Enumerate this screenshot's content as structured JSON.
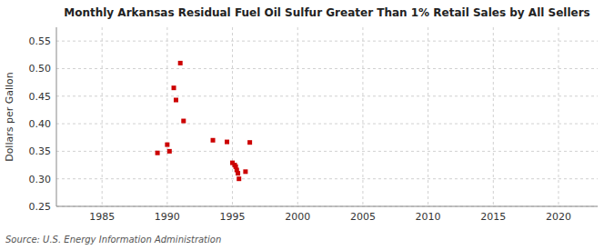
{
  "chart_data": {
    "type": "scatter",
    "title": "Monthly Arkansas Residual Fuel Oil Sulfur Greater Than 1% Retail Sales by All Sellers",
    "ylabel": "Dollars per Gallon",
    "source": "Source: U.S. Energy Information Administration",
    "color": "#cc0000",
    "marker": "square",
    "grid": true,
    "xlim": [
      1981.5,
      2023
    ],
    "ylim": [
      0.25,
      0.575
    ],
    "xticks": [
      1985,
      1990,
      1995,
      2000,
      2005,
      2010,
      2015,
      2020
    ],
    "yticks": [
      0.25,
      {
        "value": 0.3,
        "label": "0.30"
      },
      0.35,
      {
        "value": 0.4,
        "label": "0.40"
      },
      0.45,
      {
        "value": 0.5,
        "label": "0.50"
      },
      0.55
    ],
    "x": [
      1989.25,
      1990.0,
      1990.17,
      1990.5,
      1990.67,
      1991.0,
      1991.25,
      1993.5,
      1994.58,
      1995.0,
      1995.17,
      1995.25,
      1995.33,
      1995.42,
      1995.5,
      1996.0,
      1996.33
    ],
    "values": [
      0.347,
      0.362,
      0.35,
      0.465,
      0.443,
      0.51,
      0.405,
      0.37,
      0.367,
      0.329,
      0.325,
      0.322,
      0.316,
      0.31,
      0.3,
      0.313,
      0.366
    ]
  }
}
